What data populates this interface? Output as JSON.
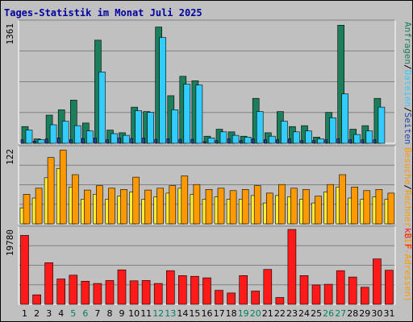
{
  "chart_data": {
    "type": "bar",
    "title": "Tages-Statistik im Monat Juli 2025",
    "categories": [
      "1",
      "2",
      "3",
      "4",
      "5",
      "6",
      "7",
      "8",
      "9",
      "10",
      "11",
      "12",
      "13",
      "14",
      "15",
      "16",
      "17",
      "18",
      "19",
      "20",
      "21",
      "22",
      "23",
      "24",
      "25",
      "26",
      "27",
      "28",
      "29",
      "30",
      "31"
    ],
    "weekend_days": [
      "5",
      "6",
      "12",
      "13",
      "19",
      "20",
      "26",
      "27"
    ],
    "colors": {
      "title": "#0000a0",
      "weekday_label": "#000000",
      "weekend_label": "#008060",
      "anfragen": "#1a7f5a",
      "dateien": "#33ccff",
      "seiten": "#2244aa",
      "besuche": "#ff9900",
      "rechner": "#ffee33",
      "kbf": "#ff1a1a",
      "panel_bg": "#c0c0c0"
    },
    "panels": [
      {
        "id": "top",
        "max_label": "1361",
        "ymax": 1361,
        "legend": [
          {
            "text": "Anfragen",
            "color": "#1a7f5a"
          },
          {
            "text": "/",
            "color": "#000000"
          },
          {
            "text": "Dateien",
            "color": "#33ccff"
          },
          {
            "text": "/",
            "color": "#000000"
          },
          {
            "text": "Seiten",
            "color": "#2244aa"
          }
        ],
        "series": [
          {
            "name": "Anfragen",
            "values": [
              190,
              50,
              320,
              380,
              490,
              230,
              1170,
              150,
              120,
              410,
              360,
              1320,
              540,
              760,
              710,
              80,
              160,
              130,
              80,
              510,
              120,
              360,
              190,
              200,
              70,
              350,
              1340,
              160,
              200,
              510,
              0
            ]
          },
          {
            "name": "Dateien",
            "values": [
              150,
              40,
              210,
              250,
              200,
              140,
              810,
              110,
              90,
              370,
              350,
              1200,
              380,
              670,
              660,
              60,
              130,
              90,
              70,
              360,
              80,
              250,
              130,
              140,
              50,
              290,
              560,
              100,
              140,
              410,
              0
            ]
          },
          {
            "name": "Seiten",
            "values": [
              40,
              25,
              50,
              60,
              40,
              55,
              60,
              40,
              60,
              55,
              60,
              45,
              50,
              45,
              45,
              20,
              30,
              50,
              30,
              50,
              40,
              40,
              50,
              30,
              30,
              40,
              50,
              40,
              40,
              40,
              0
            ]
          }
        ]
      },
      {
        "id": "middle",
        "max_label": "122",
        "ymax": 122,
        "legend": [
          {
            "text": "Besuche",
            "color": "#ff9900"
          },
          {
            "text": "/",
            "color": "#000000"
          },
          {
            "text": "Rechner (IP-Adressen)",
            "color": "#ff9900"
          }
        ],
        "series": [
          {
            "name": "Besuche",
            "values": [
              48,
              58,
              108,
              120,
              80,
              55,
              62,
              58,
              56,
              76,
              55,
              58,
              62,
              78,
              64,
              56,
              58,
              54,
              56,
              62,
              50,
              64,
              58,
              56,
              45,
              64,
              80,
              60,
              54,
              56,
              50
            ]
          },
          {
            "name": "Rechner",
            "values": [
              26,
              42,
              75,
              90,
              60,
              40,
              48,
              40,
              45,
              52,
              40,
              44,
              50,
              58,
              48,
              40,
              44,
              40,
              40,
              46,
              34,
              46,
              44,
              40,
              34,
              52,
              60,
              42,
              40,
              44,
              40
            ]
          }
        ]
      },
      {
        "id": "bottom",
        "max_label": "19780",
        "ymax": 19780,
        "legend": [
          {
            "text": "kB F",
            "color": "#ff1a1a"
          }
        ],
        "series": [
          {
            "name": "kB F",
            "values": [
              18200,
              2500,
              11000,
              6700,
              7700,
              6100,
              5500,
              6300,
              9100,
              6200,
              6300,
              5500,
              8900,
              7600,
              7400,
              7000,
              3700,
              3000,
              7600,
              3500,
              9200,
              1800,
              19780,
              7600,
              5100,
              5300,
              8900,
              7200,
              4500,
              12000,
              9000
            ]
          }
        ]
      }
    ]
  }
}
